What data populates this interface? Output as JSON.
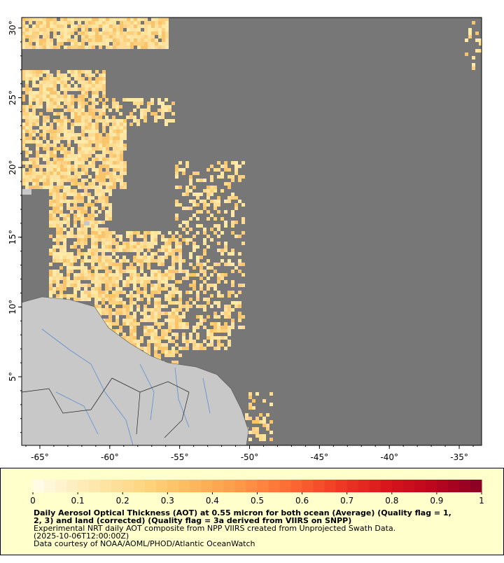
{
  "map": {
    "lon_lim": [
      -66.3,
      -33.4
    ],
    "lat_lim": [
      0.08,
      30.75
    ],
    "lat_ticks": [
      {
        "value": 5,
        "label": "5°"
      },
      {
        "value": 10,
        "label": "10°"
      },
      {
        "value": 15,
        "label": "15°"
      },
      {
        "value": 20,
        "label": "20°"
      },
      {
        "value": 25,
        "label": "25°"
      },
      {
        "value": 30,
        "label": "30°"
      }
    ],
    "lon_ticks": [
      {
        "value": -65,
        "label": "-65°"
      },
      {
        "value": -60,
        "label": "-60°"
      },
      {
        "value": -55,
        "label": "-55°"
      },
      {
        "value": -50,
        "label": "-50°"
      },
      {
        "value": -45,
        "label": "-45°"
      },
      {
        "value": -40,
        "label": "-40°"
      },
      {
        "value": -35,
        "label": "-35°"
      }
    ]
  },
  "legend": {
    "lim": [
      0,
      1
    ],
    "ticks": [
      0,
      0.1,
      0.2,
      0.3,
      0.4,
      0.5,
      0.6,
      0.7,
      0.8,
      0.9,
      1
    ],
    "colors": [
      "#fffbe6",
      "#fee9b0",
      "#fed885",
      "#fdbb5e",
      "#fd9a48",
      "#fc6e34",
      "#f03b24",
      "#d9141c",
      "#b8051e",
      "#800026"
    ],
    "title_lines": [
      "Daily Aerosol Optical Thickness (AOT) at 0.55 micron for both ocean (Average) (Quality flag = 1,",
      "2, 3) and land (corrected) (Quality flag = 3a derived from VIIRS on SNPP)"
    ],
    "notes": [
      "Experimental NRT daily AOT composite from NPP VIIRS created from Unprojected Swath Data.",
      "(2025-10-06T12:00:00Z)",
      "Data courtesy of NOAA/AOML/PHOD/Atlantic OceanWatch"
    ]
  }
}
